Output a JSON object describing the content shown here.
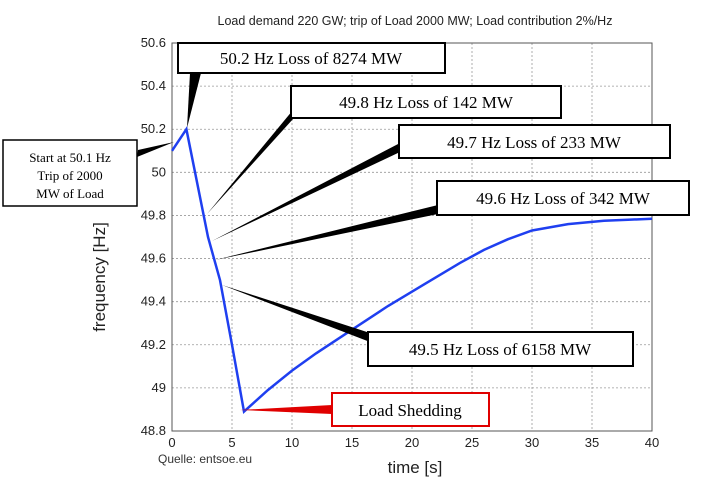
{
  "chart_data": {
    "type": "line",
    "title": "Load demand 220 GW; trip of Load 2000 MW; Load contribution 2%/Hz",
    "xlabel": "time [s]",
    "ylabel": "frequency [Hz]",
    "xlim": [
      0,
      40
    ],
    "ylim": [
      48.8,
      50.6
    ],
    "x_ticks": [
      "0",
      "5",
      "10",
      "15",
      "20",
      "25",
      "30",
      "35",
      "40"
    ],
    "y_ticks": [
      "48.8",
      "49",
      "49.2",
      "49.4",
      "49.6",
      "49.8",
      "50",
      "50.2",
      "50.4",
      "50.6"
    ],
    "grid": true,
    "series": [
      {
        "color": "#1f3ff0",
        "x": [
          0,
          1.2,
          3,
          4,
          5,
          6,
          8,
          10,
          12,
          15,
          18,
          21,
          24,
          26,
          28,
          30,
          33,
          36,
          38,
          40
        ],
        "y": [
          50.1,
          50.2,
          49.7,
          49.5,
          49.2,
          48.89,
          48.99,
          49.08,
          49.16,
          49.27,
          49.38,
          49.48,
          49.58,
          49.64,
          49.69,
          49.73,
          49.76,
          49.775,
          49.78,
          49.785
        ]
      }
    ],
    "annotations": [
      {
        "text": "Start at 50.1 Hz",
        "text2": "Trip of 2000",
        "text3": "MW of Load"
      },
      {
        "text": "50.2 Hz Loss of  8274 MW"
      },
      {
        "text": "49.8 Hz Loss of  142 MW"
      },
      {
        "text": "49.7 Hz Loss of  233 MW"
      },
      {
        "text": "49.6 Hz Loss of  342 MW"
      },
      {
        "text": "49.5 Hz Loss of  6158 MW"
      },
      {
        "text": "Load Shedding",
        "color": "#e00000"
      }
    ],
    "source": "Quelle: entsoe.eu"
  }
}
